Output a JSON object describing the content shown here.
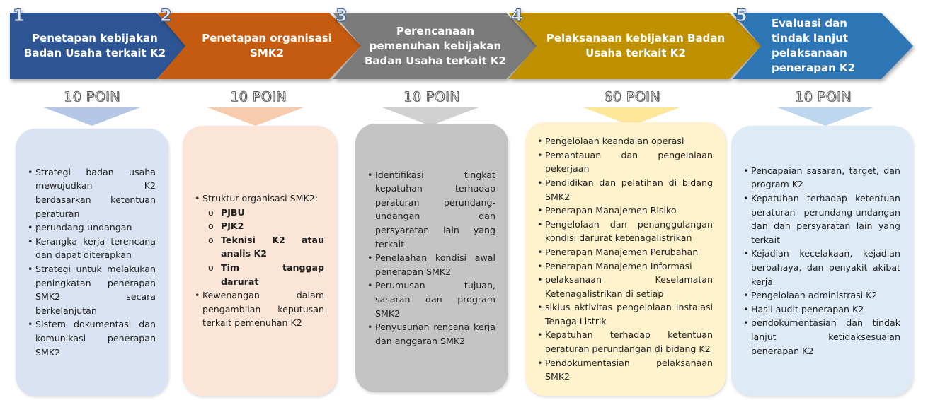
{
  "steps": [
    {
      "number": "1",
      "title": "Penetapan kebijakan Badan Usaha terkait K2",
      "points": "10 POIN",
      "color": "#2e5593",
      "box_color": "#dae3f3",
      "items": [
        "Strategi badan usaha mewujudkan K2 berdasarkan ketentuan peraturan",
        "perundang-undangan",
        "Kerangka kerja terencana dan dapat diterapkan",
        "Strategi untuk melakukan peningkatan penerapan SMK2 secara berkelanjutan",
        "Sistem dokumentasi dan komunikasi penerapan SMK2"
      ]
    },
    {
      "number": "2",
      "title": "Penetapan organisasi SMK2",
      "points": "10 POIN",
      "color": "#c55a11",
      "box_color": "#fbe5d6",
      "items": [
        "Struktur organisasi SMK2:",
        "Kewenangan dalam pengambilan keputusan terkait pemenuhan K2"
      ],
      "subitems": [
        "PJBU",
        "PJK2",
        "Teknisi K2 atau analis K2",
        "Tim tanggap darurat"
      ]
    },
    {
      "number": "3",
      "title": "Perencanaan pemenuhan kebijakan Badan Usaha terkait K2",
      "points": "10 POIN",
      "color": "#7b7b7b",
      "box_color": "#c4c4c4",
      "items": [
        "Identifikasi tingkat kepatuhan terhadap peraturan perundang-undangan dan persyaratan lain yang terkait",
        "Penelaahan kondisi awal penerapan SMK2",
        "Perumusan tujuan, sasaran dan program SMK2",
        "Penyusunan rencana kerja dan anggaran SMK2"
      ]
    },
    {
      "number": "4",
      "title": "Pelaksanaan kebijakan Badan Usaha terkait K2",
      "points": "60 POIN",
      "color": "#bf9000",
      "box_color": "#fff2cc",
      "items": [
        "Pengelolaan keandalan operasi",
        "Pemantauan dan pengelolaan pekerjaan",
        "Pendidikan dan pelatihan di bidang SMK2",
        "Penerapan Manajemen Risiko",
        "Pengelolaan dan penanggulangan kondisi darurat ketenagalistrikan",
        "Penerapan Manajemen Perubahan",
        "Penerapan Manajemen Informasi",
        "pelaksanaan Keselamatan Ketenagalistrikan di setiap",
        "siklus aktivitas pengelolaan Instalasi Tenaga Listrik",
        "Kepatuhan terhadap ketentuan peraturan perundangan di bidang K2",
        "Pendokumentasian pelaksanaan SMK2"
      ]
    },
    {
      "number": "5",
      "title": "Evaluasi dan tindak lanjut pelaksanaan penerapan K2",
      "points": "10 POIN",
      "color": "#2e75b6",
      "box_color": "#deebf7",
      "items": [
        "Pencapaian sasaran, target, dan program K2",
        "Kepatuhan terhadap ketentuan peraturan perundang-undangan dan dan persyaratan lain yang terkait",
        "Kejadian kecelakaan, kejadian berbahaya, dan penyakit akibat kerja",
        "Pengelolaan administrasi K2",
        "Hasil audit penerapan K2",
        "pendokumentasian dan tindak lanjut ketidaksesuaian penerapan K2"
      ]
    }
  ]
}
